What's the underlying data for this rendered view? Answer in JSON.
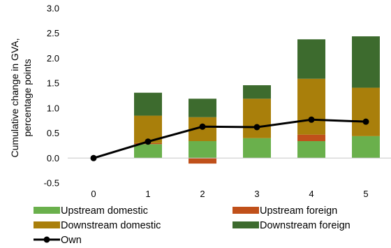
{
  "chart_data": {
    "type": "bar",
    "stacked": true,
    "title": "",
    "ylabel": "Cumulative change in GVA, percentage points",
    "xlabel": "",
    "ylim": [
      -0.5,
      3.0
    ],
    "y_ticks": [
      "-0.5",
      "0.0",
      "0.5",
      "1.0",
      "1.5",
      "2.0",
      "2.5",
      "3.0"
    ],
    "y_tick_values": [
      -0.5,
      0.0,
      0.5,
      1.0,
      1.5,
      2.0,
      2.5,
      3.0
    ],
    "categories": [
      "0",
      "1",
      "2",
      "3",
      "4",
      "5"
    ],
    "grid": false,
    "legend_position": "bottom",
    "series": [
      {
        "name": "Upstream domestic",
        "kind": "bar",
        "color": "#6ab04c",
        "values": [
          0.0,
          0.28,
          0.34,
          0.4,
          0.34,
          0.44
        ]
      },
      {
        "name": "Upstream foreign",
        "kind": "bar",
        "color": "#c0501a",
        "values": [
          0.0,
          0.02,
          -0.11,
          0.0,
          0.13,
          0.0
        ]
      },
      {
        "name": "Downstream domestic",
        "kind": "bar",
        "color": "#a97f0b",
        "values": [
          0.0,
          0.55,
          0.48,
          0.79,
          1.12,
          0.97
        ]
      },
      {
        "name": "Downstream foreign",
        "kind": "bar",
        "color": "#3d6b2e",
        "values": [
          0.0,
          0.46,
          0.37,
          0.27,
          0.79,
          1.03
        ]
      },
      {
        "name": "Own",
        "kind": "line",
        "color": "#000000",
        "values": [
          0.0,
          0.33,
          0.63,
          0.62,
          0.77,
          0.73
        ]
      }
    ]
  }
}
